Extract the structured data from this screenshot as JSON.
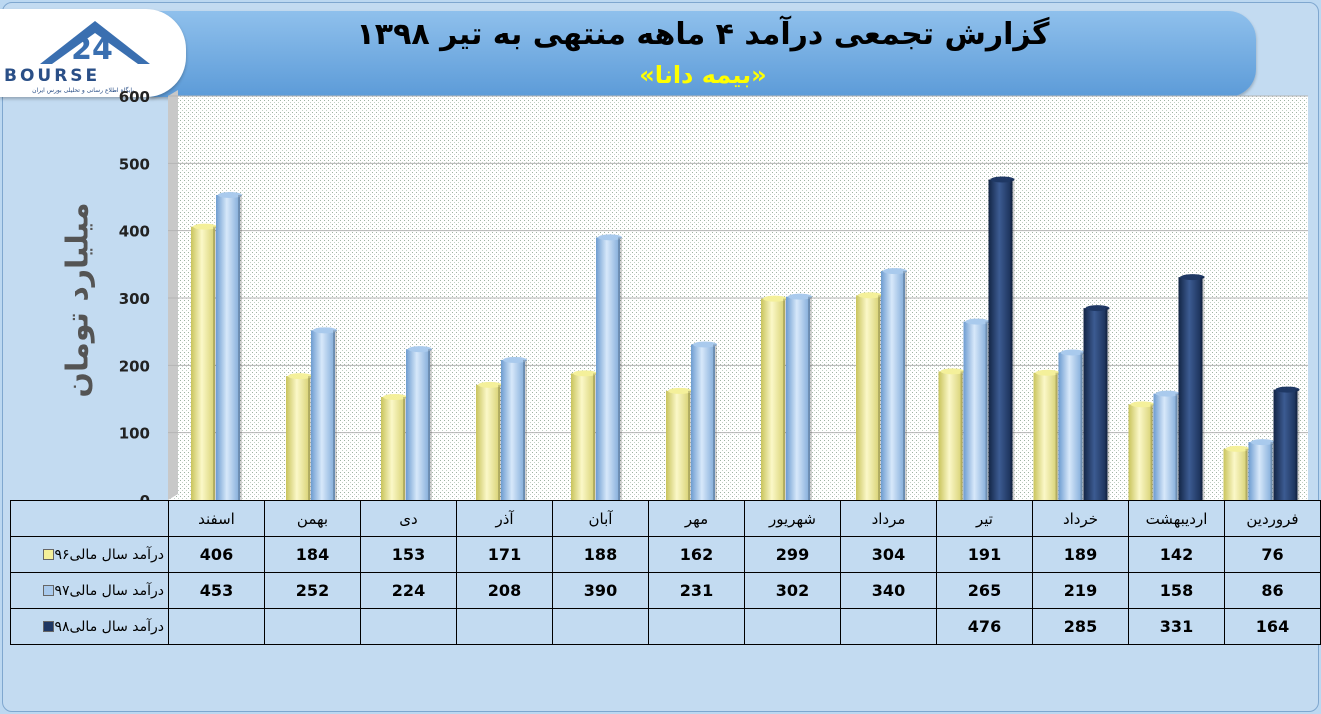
{
  "header": {
    "title": "گزارش تجمعی درآمد ۴ ماهه منتهی به تیر ۱۳۹۸",
    "subtitle": "«بیمه دانا»"
  },
  "logo": {
    "text": "BOURSE",
    "number": "24",
    "tagline": "پایگاه اطلاع رسانی و تحلیلی بورس ایران"
  },
  "chart_data": {
    "type": "bar",
    "title": "گزارش تجمعی درآمد ۴ ماهه منتهی به تیر ۱۳۹۸",
    "ylabel": "میلیارد تومان",
    "ylim": [
      0,
      600
    ],
    "yticks": [
      0,
      100,
      200,
      300,
      400,
      500,
      600
    ],
    "grid": true,
    "categories": [
      "فروردین",
      "اردیبهشت",
      "خرداد",
      "تیر",
      "مرداد",
      "شهریور",
      "مهر",
      "آبان",
      "آذر",
      "دی",
      "بهمن",
      "اسفند"
    ],
    "series": [
      {
        "name": "درآمد سال مالی۹۶",
        "color": "#f4f09a",
        "values": [
          76,
          142,
          189,
          191,
          304,
          299,
          162,
          188,
          171,
          153,
          184,
          406
        ]
      },
      {
        "name": "درآمد سال مالی۹۷",
        "color": "#a9caed",
        "values": [
          86,
          158,
          219,
          265,
          340,
          302,
          231,
          390,
          208,
          224,
          252,
          453
        ]
      },
      {
        "name": "درآمد سال مالی۹۸",
        "color": "#1f3864",
        "values": [
          164,
          331,
          285,
          476,
          null,
          null,
          null,
          null,
          null,
          null,
          null,
          null
        ]
      }
    ]
  }
}
